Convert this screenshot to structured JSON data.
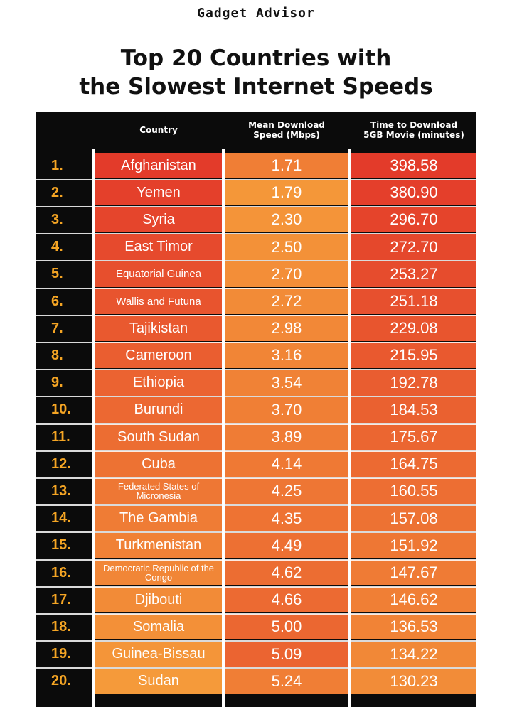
{
  "brand": "Gadget Advisor",
  "title_line1": "Top 20 Countries with",
  "title_line2": "the Slowest Internet Speeds",
  "headers": {
    "country": "Country",
    "speed_line1": "Mean Download",
    "speed_line2": "Speed (Mbps)",
    "time_line1": "Time to Download",
    "time_line2": "5GB Movie (minutes)"
  },
  "colors": {
    "background": "#0b0b0b",
    "rank_text": "#f5a524",
    "deep_red": "#e33b2a",
    "orange": "#f59a3a"
  },
  "chart_data": {
    "type": "table",
    "title": "Top 20 Countries with the Slowest Internet Speeds",
    "columns": [
      "Country",
      "Mean Download Speed (Mbps)",
      "Time to Download 5GB Movie (minutes)"
    ],
    "rows": [
      {
        "rank": "1.",
        "country": "Afghanistan",
        "speed": "1.71",
        "time": "398.58"
      },
      {
        "rank": "2.",
        "country": "Yemen",
        "speed": "1.79",
        "time": "380.90"
      },
      {
        "rank": "3.",
        "country": "Syria",
        "speed": "2.30",
        "time": "296.70"
      },
      {
        "rank": "4.",
        "country": "East Timor",
        "speed": "2.50",
        "time": "272.70"
      },
      {
        "rank": "5.",
        "country": "Equatorial Guinea",
        "speed": "2.70",
        "time": "253.27"
      },
      {
        "rank": "6.",
        "country": "Wallis and Futuna",
        "speed": "2.72",
        "time": "251.18"
      },
      {
        "rank": "7.",
        "country": "Tajikistan",
        "speed": "2.98",
        "time": "229.08"
      },
      {
        "rank": "8.",
        "country": "Cameroon",
        "speed": "3.16",
        "time": "215.95"
      },
      {
        "rank": "9.",
        "country": "Ethiopia",
        "speed": "3.54",
        "time": "192.78"
      },
      {
        "rank": "10.",
        "country": "Burundi",
        "speed": "3.70",
        "time": "184.53"
      },
      {
        "rank": "11.",
        "country": "South Sudan",
        "speed": "3.89",
        "time": "175.67"
      },
      {
        "rank": "12.",
        "country": "Cuba",
        "speed": "4.14",
        "time": "164.75"
      },
      {
        "rank": "13.",
        "country": "Federated States of Micronesia",
        "speed": "4.25",
        "time": "160.55"
      },
      {
        "rank": "14.",
        "country": "The Gambia",
        "speed": "4.35",
        "time": "157.08"
      },
      {
        "rank": "15.",
        "country": "Turkmenistan",
        "speed": "4.49",
        "time": "151.92"
      },
      {
        "rank": "16.",
        "country": "Democratic Republic of the Congo",
        "speed": "4.62",
        "time": "147.67"
      },
      {
        "rank": "17.",
        "country": "Djibouti",
        "speed": "4.66",
        "time": "146.62"
      },
      {
        "rank": "18.",
        "country": "Somalia",
        "speed": "5.00",
        "time": "136.53"
      },
      {
        "rank": "19.",
        "country": "Guinea-Bissau",
        "speed": "5.09",
        "time": "134.22"
      },
      {
        "rank": "20.",
        "country": "Sudan",
        "speed": "5.24",
        "time": "130.23"
      }
    ]
  }
}
